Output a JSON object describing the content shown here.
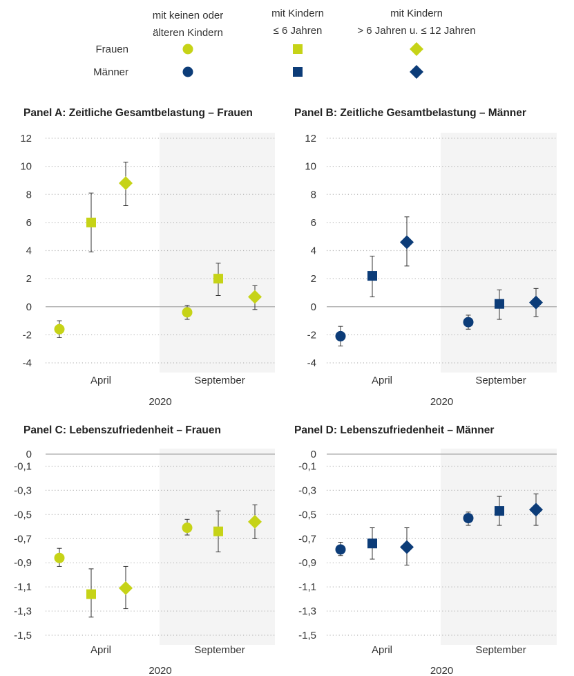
{
  "legend": {
    "columns": [
      "mit keinen oder älteren Kindern",
      "mit Kindern ≤ 6 Jahren",
      "mit Kindern > 6 Jahren u. ≤ 12 Jahren"
    ],
    "column_lines": [
      [
        "mit keinen oder",
        "älteren Kindern"
      ],
      [
        "mit Kindern",
        "≤ 6 Jahren"
      ],
      [
        "mit Kindern",
        "> 6 Jahren u. ≤ 12 Jahren"
      ]
    ],
    "rows": [
      "Frauen",
      "Männer"
    ],
    "markers": [
      "circle",
      "square",
      "diamond"
    ]
  },
  "colors": {
    "frauen": "#c6d317",
    "maenner": "#0c3c78",
    "shade": "#f4f4f4",
    "grid": "#b8b8b8",
    "zero": "#a8a8a8",
    "errbar": "#333333"
  },
  "chart_data": [
    {
      "type": "scatter",
      "title": "Panel A: Zeitliche Gesamtbelastung – Frauen",
      "group": "frauen",
      "categories": [
        "April",
        "September"
      ],
      "xlabel": "2020",
      "ylim": [
        -4,
        12
      ],
      "yticks": [
        12,
        10,
        8,
        6,
        4,
        2,
        0,
        -2,
        -4
      ],
      "ytick_labels": [
        "12",
        "10",
        "8",
        "6",
        "4",
        "2",
        "0",
        "-2",
        "-4"
      ],
      "baseline": 0,
      "shaded_category": "September",
      "grid": "dotted",
      "series": [
        {
          "name": "mit keinen oder älteren Kindern",
          "marker": "circle",
          "values": [
            -1.6,
            -0.4
          ],
          "lower": [
            -2.2,
            -0.9
          ],
          "upper": [
            -1.0,
            0.1
          ]
        },
        {
          "name": "mit Kindern ≤ 6 Jahren",
          "marker": "square",
          "values": [
            6.0,
            2.0
          ],
          "lower": [
            3.9,
            0.8
          ],
          "upper": [
            8.1,
            3.1
          ]
        },
        {
          "name": "mit Kindern > 6 Jahren u. ≤ 12 Jahren",
          "marker": "diamond",
          "values": [
            8.8,
            0.7
          ],
          "lower": [
            7.2,
            -0.2
          ],
          "upper": [
            10.3,
            1.5
          ]
        }
      ]
    },
    {
      "type": "scatter",
      "title": "Panel B: Zeitliche Gesamtbelastung – Männer",
      "group": "maenner",
      "categories": [
        "April",
        "September"
      ],
      "xlabel": "2020",
      "ylim": [
        -4,
        12
      ],
      "yticks": [
        12,
        10,
        8,
        6,
        4,
        2,
        0,
        -2,
        -4
      ],
      "ytick_labels": [
        "12",
        "10",
        "8",
        "6",
        "4",
        "2",
        "0",
        "-2",
        "-4"
      ],
      "baseline": 0,
      "shaded_category": "September",
      "grid": "dotted",
      "series": [
        {
          "name": "mit keinen oder älteren Kindern",
          "marker": "circle",
          "values": [
            -2.1,
            -1.1
          ],
          "lower": [
            -2.8,
            -1.6
          ],
          "upper": [
            -1.4,
            -0.6
          ]
        },
        {
          "name": "mit Kindern ≤ 6 Jahren",
          "marker": "square",
          "values": [
            2.2,
            0.2
          ],
          "lower": [
            0.7,
            -0.9
          ],
          "upper": [
            3.6,
            1.2
          ]
        },
        {
          "name": "mit Kindern > 6 Jahren u. ≤ 12 Jahren",
          "marker": "diamond",
          "values": [
            4.6,
            0.3
          ],
          "lower": [
            2.9,
            -0.7
          ],
          "upper": [
            6.4,
            1.3
          ]
        }
      ]
    },
    {
      "type": "scatter",
      "title": "Panel C: Lebenszufriedenheit – Frauen",
      "group": "frauen",
      "categories": [
        "April",
        "September"
      ],
      "xlabel": "2020",
      "ylim": [
        -1.5,
        0
      ],
      "yticks": [
        0,
        -0.1,
        -0.3,
        -0.5,
        -0.7,
        -0.9,
        -1.1,
        -1.3,
        -1.5
      ],
      "ytick_labels": [
        "0",
        "-0,1",
        "-0,3",
        "-0,5",
        "-0,7",
        "-0,9",
        "-1,1",
        "-1,3",
        "-1,5"
      ],
      "baseline": 0,
      "shaded_category": "September",
      "grid": "dotted",
      "series": [
        {
          "name": "mit keinen oder älteren Kindern",
          "marker": "circle",
          "values": [
            -0.86,
            -0.61
          ],
          "lower": [
            -0.93,
            -0.67
          ],
          "upper": [
            -0.78,
            -0.54
          ]
        },
        {
          "name": "mit Kindern ≤ 6 Jahren",
          "marker": "square",
          "values": [
            -1.16,
            -0.64
          ],
          "lower": [
            -1.35,
            -0.81
          ],
          "upper": [
            -0.95,
            -0.47
          ]
        },
        {
          "name": "mit Kindern > 6 Jahren u. ≤ 12 Jahren",
          "marker": "diamond",
          "values": [
            -1.11,
            -0.56
          ],
          "lower": [
            -1.28,
            -0.7
          ],
          "upper": [
            -0.93,
            -0.42
          ]
        }
      ]
    },
    {
      "type": "scatter",
      "title": "Panel D: Lebenszufriedenheit – Männer",
      "group": "maenner",
      "categories": [
        "April",
        "September"
      ],
      "xlabel": "2020",
      "ylim": [
        -1.5,
        0
      ],
      "yticks": [
        0,
        -0.1,
        -0.3,
        -0.5,
        -0.7,
        -0.9,
        -1.1,
        -1.3,
        -1.5
      ],
      "ytick_labels": [
        "0",
        "-0,1",
        "-0,3",
        "-0,5",
        "-0,7",
        "-0,9",
        "-1,1",
        "-1,3",
        "-1,5"
      ],
      "baseline": 0,
      "shaded_category": "September",
      "grid": "dotted",
      "series": [
        {
          "name": "mit keinen oder älteren Kindern",
          "marker": "circle",
          "values": [
            -0.79,
            -0.53
          ],
          "lower": [
            -0.84,
            -0.59
          ],
          "upper": [
            -0.73,
            -0.48
          ]
        },
        {
          "name": "mit Kindern ≤ 6 Jahren",
          "marker": "square",
          "values": [
            -0.74,
            -0.47
          ],
          "lower": [
            -0.87,
            -0.59
          ],
          "upper": [
            -0.61,
            -0.35
          ]
        },
        {
          "name": "mit Kindern > 6 Jahren u. ≤ 12 Jahren",
          "marker": "diamond",
          "values": [
            -0.77,
            -0.46
          ],
          "lower": [
            -0.92,
            -0.59
          ],
          "upper": [
            -0.61,
            -0.33
          ]
        }
      ]
    }
  ]
}
